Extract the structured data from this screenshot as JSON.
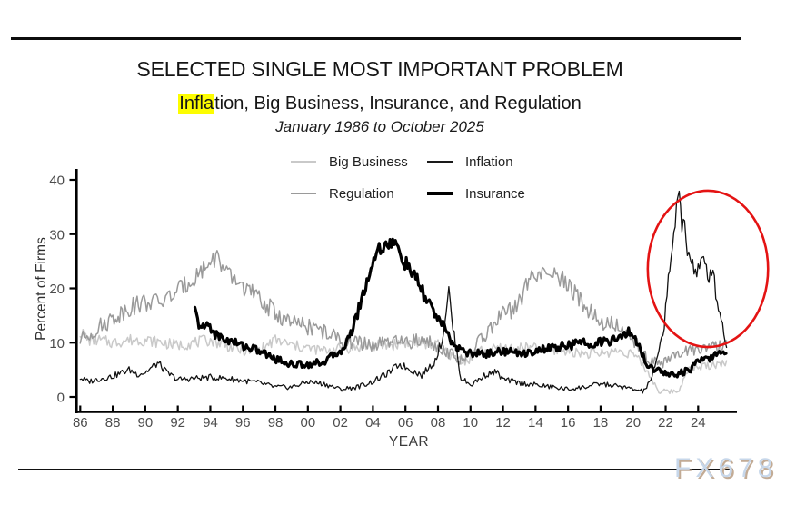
{
  "header": {
    "title": "SELECTED SINGLE MOST IMPORTANT PROBLEM",
    "subtitle_highlight": "Infla",
    "subtitle_rest": "tion, Big Business, Insurance, and Regulation",
    "date_range": "January 1986 to October 2025",
    "highlight_color": "#fdfd00"
  },
  "legend": {
    "items": [
      {
        "label": "Big Business",
        "color": "#c9c9c9",
        "weight": 2
      },
      {
        "label": "Inflation",
        "color": "#1a1a1a",
        "weight": 2
      },
      {
        "label": "Regulation",
        "color": "#9a9a9a",
        "weight": 2
      },
      {
        "label": "Insurance",
        "color": "#000000",
        "weight": 4
      }
    ]
  },
  "watermark": {
    "text": "FX678"
  },
  "chart_data": {
    "type": "line",
    "title": "SELECTED SINGLE MOST IMPORTANT PROBLEM",
    "subtitle": "Inflation, Big Business, Insurance, and Regulation",
    "period": "January 1986 to October 2025",
    "xlabel": "YEAR",
    "ylabel": "Percent of Firms",
    "x_domain": [
      1986,
      2025.83
    ],
    "ylim": [
      0,
      40
    ],
    "y_ticks": [
      0,
      10,
      20,
      30,
      40
    ],
    "x_tick_years": [
      1986,
      1988,
      1990,
      1992,
      1994,
      1996,
      1998,
      2000,
      2002,
      2004,
      2006,
      2008,
      2010,
      2012,
      2014,
      2016,
      2018,
      2020,
      2022,
      2024
    ],
    "x_tick_labels": [
      "86",
      "88",
      "90",
      "92",
      "94",
      "96",
      "98",
      "00",
      "02",
      "04",
      "06",
      "08",
      "10",
      "12",
      "14",
      "16",
      "18",
      "20",
      "22",
      "24"
    ],
    "grid": false,
    "legend_position": "top-center",
    "resolution": "monthly (noisy survey series; anchors approximate the monthly data)",
    "series": [
      {
        "name": "Big Business",
        "color": "#c9c9c9",
        "width": 1.5,
        "noise": 0.8,
        "ncap": 1.2,
        "seed": 7,
        "anchors": [
          [
            1986,
            12
          ],
          [
            1986.5,
            10.5
          ],
          [
            1987,
            10.5
          ],
          [
            1988,
            10
          ],
          [
            1989,
            10.5
          ],
          [
            1990,
            10.5
          ],
          [
            1991,
            10
          ],
          [
            1992,
            9.5
          ],
          [
            1993,
            10
          ],
          [
            1994,
            10.5
          ],
          [
            1995,
            9.5
          ],
          [
            1996,
            8.5
          ],
          [
            1997,
            8.5
          ],
          [
            1998,
            10.5
          ],
          [
            1999,
            9.5
          ],
          [
            2000,
            9
          ],
          [
            2001,
            8.5
          ],
          [
            2002,
            9
          ],
          [
            2003,
            9
          ],
          [
            2004,
            9.5
          ],
          [
            2005,
            9.5
          ],
          [
            2006,
            10
          ],
          [
            2007,
            10
          ],
          [
            2008,
            9.5
          ],
          [
            2008.8,
            7.5
          ],
          [
            2009.8,
            6.5
          ],
          [
            2010.5,
            8.5
          ],
          [
            2011,
            8.5
          ],
          [
            2012,
            9
          ],
          [
            2013,
            9
          ],
          [
            2014,
            9
          ],
          [
            2015,
            8.5
          ],
          [
            2016,
            8.5
          ],
          [
            2017,
            8
          ],
          [
            2018,
            8
          ],
          [
            2019,
            8.5
          ],
          [
            2020,
            8
          ],
          [
            2020.8,
            5
          ],
          [
            2021.6,
            1
          ],
          [
            2022.8,
            1
          ],
          [
            2023.3,
            5
          ],
          [
            2024,
            5.5
          ],
          [
            2025,
            6
          ],
          [
            2025.79,
            6.5
          ]
        ]
      },
      {
        "name": "Regulation",
        "color": "#9a9a9a",
        "width": 1.5,
        "noise": 1.0,
        "ncap": 1.7,
        "seed": 13,
        "anchors": [
          [
            1986,
            10.5
          ],
          [
            1987,
            12.5
          ],
          [
            1988,
            14.5
          ],
          [
            1989,
            16.5
          ],
          [
            1990,
            17.5
          ],
          [
            1991,
            17.5
          ],
          [
            1992,
            19.5
          ],
          [
            1993,
            22
          ],
          [
            1994.4,
            26
          ],
          [
            1995,
            22.5
          ],
          [
            1996,
            20.5
          ],
          [
            1997,
            18
          ],
          [
            1998,
            15.5
          ],
          [
            1999,
            13.5
          ],
          [
            2000,
            13
          ],
          [
            2001,
            12
          ],
          [
            2002,
            10.5
          ],
          [
            2003,
            10
          ],
          [
            2004,
            9.5
          ],
          [
            2005,
            10
          ],
          [
            2006,
            10
          ],
          [
            2007,
            10.5
          ],
          [
            2008,
            9.5
          ],
          [
            2009.5,
            6.5
          ],
          [
            2010,
            8
          ],
          [
            2011,
            12
          ],
          [
            2012,
            15
          ],
          [
            2012.9,
            16.5
          ],
          [
            2013.6,
            22
          ],
          [
            2014.5,
            22.5
          ],
          [
            2015.5,
            22
          ],
          [
            2016,
            20.5
          ],
          [
            2017,
            17
          ],
          [
            2018,
            14
          ],
          [
            2019,
            13
          ],
          [
            2020,
            10.5
          ],
          [
            2021,
            7
          ],
          [
            2021.7,
            6
          ],
          [
            2022.5,
            7.5
          ],
          [
            2023,
            8
          ],
          [
            2024,
            9
          ],
          [
            2025,
            9
          ],
          [
            2025.79,
            9.5
          ]
        ]
      },
      {
        "name": "Inflation",
        "color": "#111111",
        "width": 1.3,
        "noise": 0.7,
        "ncap": 2.6,
        "seed": 3,
        "anchors": [
          [
            1986,
            3.5
          ],
          [
            1986.5,
            2.8
          ],
          [
            1987,
            3.2
          ],
          [
            1988,
            3.8
          ],
          [
            1989,
            5
          ],
          [
            1989.5,
            4.2
          ],
          [
            1990,
            4.5
          ],
          [
            1990.8,
            6.3
          ],
          [
            1991.3,
            4.5
          ],
          [
            1992,
            3.2
          ],
          [
            1993,
            3.4
          ],
          [
            1994,
            3.6
          ],
          [
            1995,
            3.4
          ],
          [
            1996,
            3
          ],
          [
            1997,
            2.6
          ],
          [
            1998,
            1.8
          ],
          [
            1999,
            1.8
          ],
          [
            2000,
            2.8
          ],
          [
            2001,
            2.4
          ],
          [
            2002,
            1.4
          ],
          [
            2003,
            1.8
          ],
          [
            2004,
            2.8
          ],
          [
            2005,
            4.5
          ],
          [
            2005.6,
            6
          ],
          [
            2006,
            5.5
          ],
          [
            2007,
            4
          ],
          [
            2007.8,
            6.5
          ],
          [
            2008.3,
            11
          ],
          [
            2008.65,
            20
          ],
          [
            2008.9,
            13
          ],
          [
            2009.4,
            3.5
          ],
          [
            2010,
            2.2
          ],
          [
            2011,
            4.2
          ],
          [
            2011.6,
            4.6
          ],
          [
            2012,
            3.2
          ],
          [
            2013,
            2.6
          ],
          [
            2014,
            2.2
          ],
          [
            2015,
            1.8
          ],
          [
            2016,
            1.4
          ],
          [
            2017,
            1.8
          ],
          [
            2018,
            2.4
          ],
          [
            2019,
            2
          ],
          [
            2020,
            1.4
          ],
          [
            2020.6,
            1
          ],
          [
            2021,
            2.5
          ],
          [
            2021.5,
            7
          ],
          [
            2021.9,
            13
          ],
          [
            2022.1,
            20
          ],
          [
            2022.4,
            28
          ],
          [
            2022.7,
            34
          ],
          [
            2022.85,
            37.5
          ],
          [
            2023,
            31
          ],
          [
            2023.15,
            33
          ],
          [
            2023.3,
            28
          ],
          [
            2023.5,
            26
          ],
          [
            2023.8,
            23
          ],
          [
            2024.1,
            24
          ],
          [
            2024.35,
            25
          ],
          [
            2024.6,
            22
          ],
          [
            2024.85,
            24
          ],
          [
            2025.05,
            20
          ],
          [
            2025.25,
            16.5
          ],
          [
            2025.45,
            14.5
          ],
          [
            2025.6,
            11
          ],
          [
            2025.79,
            9.5
          ]
        ]
      },
      {
        "name": "Insurance",
        "color": "#000000",
        "width": 3.2,
        "noise": 0.65,
        "ncap": 1.4,
        "seed": 21,
        "anchors": [
          [
            1993.05,
            16
          ],
          [
            1993.2,
            14
          ],
          [
            1993.5,
            12.5
          ],
          [
            1993.9,
            13.5
          ],
          [
            1994.3,
            11.5
          ],
          [
            1995,
            10.5
          ],
          [
            1996,
            9.5
          ],
          [
            1997,
            8.5
          ],
          [
            1998,
            7
          ],
          [
            1999,
            6
          ],
          [
            2000,
            6
          ],
          [
            2001,
            6.5
          ],
          [
            2002,
            8.5
          ],
          [
            2002.5,
            10.5
          ],
          [
            2003,
            15
          ],
          [
            2003.5,
            20
          ],
          [
            2004,
            25
          ],
          [
            2004.4,
            27.5
          ],
          [
            2004.8,
            28
          ],
          [
            2005.1,
            28.5
          ],
          [
            2005.5,
            27.5
          ],
          [
            2006,
            24.5
          ],
          [
            2006.5,
            22.5
          ],
          [
            2007,
            19.5
          ],
          [
            2007.5,
            17
          ],
          [
            2008,
            14.5
          ],
          [
            2008.5,
            12
          ],
          [
            2009,
            9.5
          ],
          [
            2009.5,
            8.5
          ],
          [
            2010,
            8
          ],
          [
            2011,
            8
          ],
          [
            2012,
            8.5
          ],
          [
            2013,
            8
          ],
          [
            2014,
            8.5
          ],
          [
            2015,
            9
          ],
          [
            2016,
            9.5
          ],
          [
            2017,
            10
          ],
          [
            2018,
            10
          ],
          [
            2019,
            10.5
          ],
          [
            2019.6,
            12
          ],
          [
            2020.1,
            11
          ],
          [
            2020.7,
            7
          ],
          [
            2021,
            5.5
          ],
          [
            2021.5,
            5
          ],
          [
            2022,
            4.5
          ],
          [
            2022.5,
            4
          ],
          [
            2023,
            4.5
          ],
          [
            2023.5,
            5
          ],
          [
            2024,
            6.5
          ],
          [
            2024.5,
            7
          ],
          [
            2025,
            7.5
          ],
          [
            2025.79,
            8.5
          ]
        ]
      }
    ],
    "annotation_ellipse": {
      "center_year": 2024.6,
      "center_value": 23.6,
      "rx_years": 3.7,
      "ry_values": 14.4,
      "color": "#e41313",
      "stroke_width": 2.6,
      "meaning": "highlights the 2021-2025 inflation spike"
    },
    "axis_color": "#000000",
    "tick_label_color": "#4c4c4c"
  }
}
